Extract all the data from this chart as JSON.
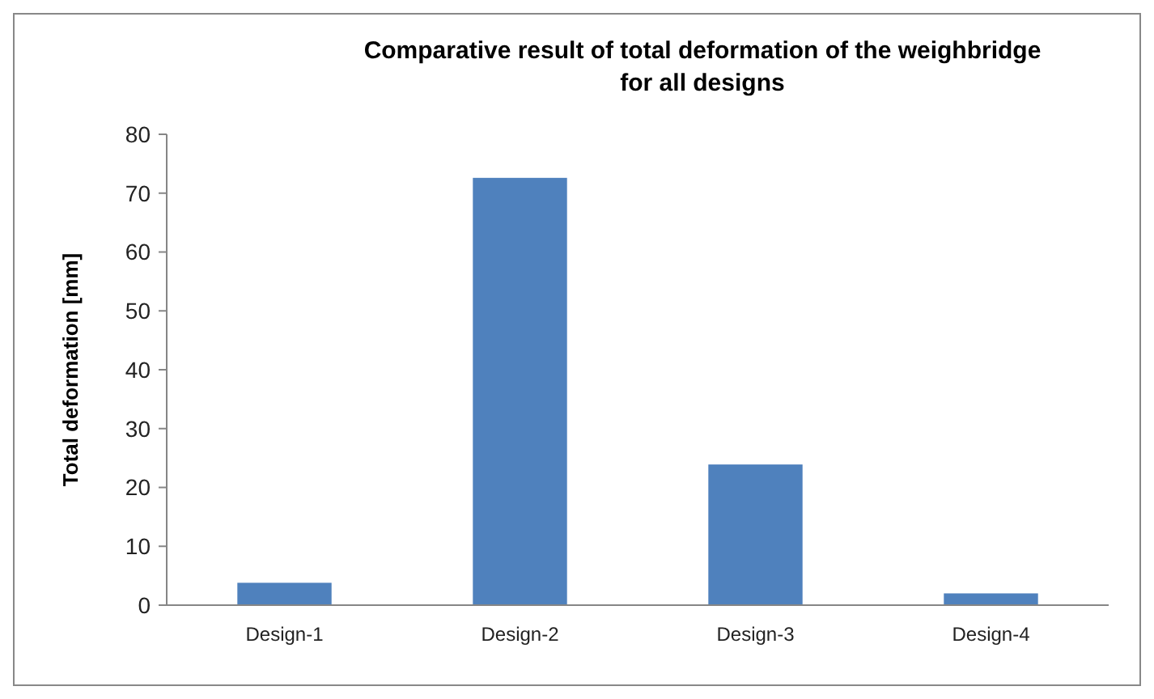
{
  "chart_data": {
    "type": "bar",
    "title": "Comparative result of total deformation of the weighbridge for all designs",
    "ylabel": "Total deformation [mm]",
    "categories": [
      "Design-1",
      "Design-2",
      "Design-3",
      "Design-4"
    ],
    "values": [
      3.8,
      72.6,
      23.9,
      2.0
    ],
    "color": "#4f81bd",
    "ylim": [
      0,
      80
    ],
    "yticks": [
      0,
      10,
      20,
      30,
      40,
      50,
      60,
      70,
      80
    ],
    "grid": false
  }
}
